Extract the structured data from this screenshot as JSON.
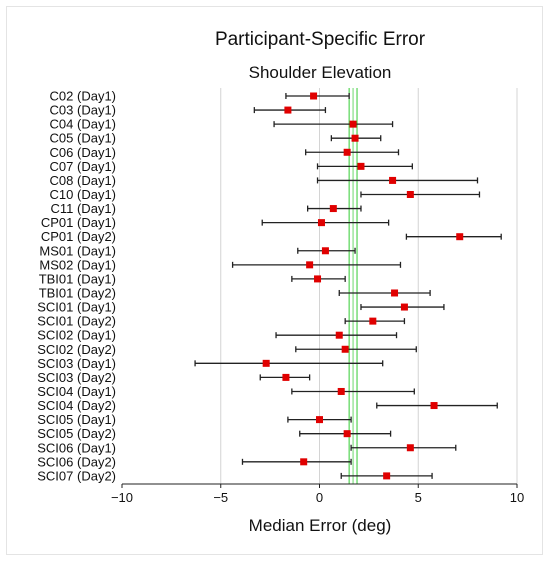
{
  "chart_data": {
    "type": "scatter",
    "title": "Participant-Specific Error",
    "subtitle": "Shoulder Elevation",
    "xlabel": "Median Error (deg)",
    "xlim": [
      -10,
      10
    ],
    "xticks": [
      -10,
      -5,
      0,
      5,
      10
    ],
    "xtick_labels": [
      "−10",
      "−5",
      "0",
      "5",
      "10"
    ],
    "grid": true,
    "reference_line": {
      "x": 1.7,
      "band": [
        1.5,
        1.9
      ],
      "color": "#33cc33"
    },
    "marker_color": "#e00000",
    "errorbar_color": "#222222",
    "points": [
      {
        "label": "C02 (Day1)",
        "median": -0.3,
        "low": -1.7,
        "high": 1.5
      },
      {
        "label": "C03 (Day1)",
        "median": -1.6,
        "low": -3.3,
        "high": 0.3
      },
      {
        "label": "C04 (Day1)",
        "median": 1.7,
        "low": -2.3,
        "high": 3.7
      },
      {
        "label": "C05 (Day1)",
        "median": 1.8,
        "low": 0.6,
        "high": 3.1
      },
      {
        "label": "C06 (Day1)",
        "median": 1.4,
        "low": -0.7,
        "high": 4.0
      },
      {
        "label": "C07 (Day1)",
        "median": 2.1,
        "low": -0.1,
        "high": 4.7
      },
      {
        "label": "C08 (Day1)",
        "median": 3.7,
        "low": -0.1,
        "high": 8.0
      },
      {
        "label": "C10 (Day1)",
        "median": 4.6,
        "low": 2.1,
        "high": 8.1
      },
      {
        "label": "C11 (Day1)",
        "median": 0.7,
        "low": -0.6,
        "high": 2.1
      },
      {
        "label": "CP01 (Day1)",
        "median": 0.1,
        "low": -2.9,
        "high": 3.5
      },
      {
        "label": "CP01 (Day2)",
        "median": 7.1,
        "low": 4.4,
        "high": 9.2
      },
      {
        "label": "MS01 (Day1)",
        "median": 0.3,
        "low": -1.1,
        "high": 1.8
      },
      {
        "label": "MS02 (Day1)",
        "median": -0.5,
        "low": -4.4,
        "high": 4.1
      },
      {
        "label": "TBI01 (Day1)",
        "median": -0.1,
        "low": -1.4,
        "high": 1.3
      },
      {
        "label": "TBI01 (Day2)",
        "median": 3.8,
        "low": 1.0,
        "high": 5.6
      },
      {
        "label": "SCI01 (Day1)",
        "median": 4.3,
        "low": 2.1,
        "high": 6.3
      },
      {
        "label": "SCI01 (Day2)",
        "median": 2.7,
        "low": 1.3,
        "high": 4.3
      },
      {
        "label": "SCI02 (Day1)",
        "median": 1.0,
        "low": -2.2,
        "high": 3.9
      },
      {
        "label": "SCI02 (Day2)",
        "median": 1.3,
        "low": -1.2,
        "high": 4.9
      },
      {
        "label": "SCI03 (Day1)",
        "median": -2.7,
        "low": -6.3,
        "high": 3.2
      },
      {
        "label": "SCI03 (Day2)",
        "median": -1.7,
        "low": -3.0,
        "high": -0.5
      },
      {
        "label": "SCI04 (Day1)",
        "median": 1.1,
        "low": -1.4,
        "high": 4.8
      },
      {
        "label": "SCI04 (Day2)",
        "median": 5.8,
        "low": 2.9,
        "high": 9.0
      },
      {
        "label": "SCI05 (Day1)",
        "median": 0.0,
        "low": -1.6,
        "high": 1.6
      },
      {
        "label": "SCI05 (Day2)",
        "median": 1.4,
        "low": -1.0,
        "high": 3.6
      },
      {
        "label": "SCI06 (Day1)",
        "median": 4.6,
        "low": 1.6,
        "high": 6.9
      },
      {
        "label": "SCI06 (Day2)",
        "median": -0.8,
        "low": -3.9,
        "high": 1.6
      },
      {
        "label": "SCI07 (Day2)",
        "median": 3.4,
        "low": 1.1,
        "high": 5.7
      }
    ]
  }
}
